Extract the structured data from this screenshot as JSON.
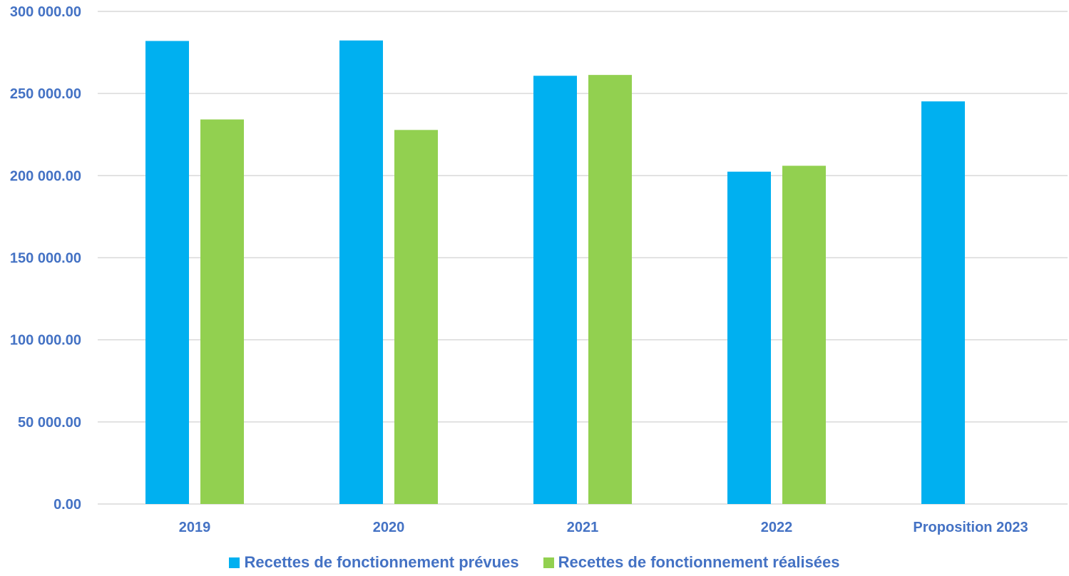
{
  "chart_data": {
    "type": "bar",
    "title": "",
    "xlabel": "",
    "ylabel": "",
    "categories": [
      "2019",
      "2020",
      "2021",
      "2022",
      "Proposition 2023"
    ],
    "series": [
      {
        "name": "Recettes de fonctionnement prévues",
        "color": "#00B0F0",
        "values": [
          282000,
          282300,
          260800,
          202400,
          245200
        ]
      },
      {
        "name": "Recettes de fonctionnement réalisées",
        "color": "#92D050",
        "values": [
          234200,
          227800,
          261300,
          206000,
          null
        ]
      }
    ],
    "ylim": [
      0,
      300000
    ],
    "yticks": [
      0,
      50000,
      100000,
      150000,
      200000,
      250000,
      300000
    ],
    "ytick_labels": [
      "0.00",
      "50 000.00",
      "100 000.00",
      "150 000.00",
      "200 000.00",
      "250 000.00",
      "300 000.00"
    ],
    "grid": true,
    "legend_position": "bottom"
  },
  "colors": {
    "axis_text": "#4472C4",
    "grid": "#D9D9D9"
  }
}
